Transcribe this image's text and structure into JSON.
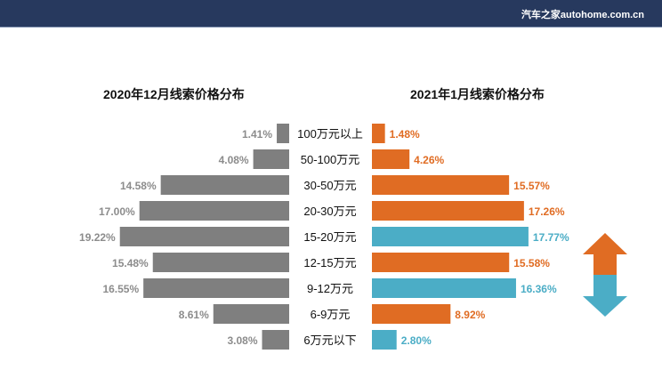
{
  "header": {
    "brand": "汽车之家autohome.com.cn"
  },
  "chart_data": {
    "type": "bar",
    "categories": [
      "100万元以上",
      "50-100万元",
      "30-50万元",
      "20-30万元",
      "15-20万元",
      "12-15万元",
      "9-12万元",
      "6-9万元",
      "6万元以下"
    ],
    "series": [
      {
        "name": "2020年12月线索价格分布",
        "values": [
          1.41,
          4.08,
          14.58,
          17.0,
          19.22,
          15.48,
          16.55,
          8.61,
          3.08
        ],
        "labels": [
          "1.41%",
          "4.08%",
          "14.58%",
          "17.00%",
          "19.22%",
          "15.48%",
          "16.55%",
          "8.61%",
          "3.08%"
        ],
        "color": "#7f7f7f"
      },
      {
        "name": "2021年1月线索价格分布",
        "values": [
          1.48,
          4.26,
          15.57,
          17.26,
          17.77,
          15.58,
          16.36,
          8.92,
          2.8
        ],
        "labels": [
          "1.48%",
          "4.26%",
          "15.57%",
          "17.26%",
          "17.77%",
          "15.58%",
          "16.36%",
          "8.92%",
          "2.80%"
        ],
        "trend": [
          "up",
          "up",
          "up",
          "up",
          "down",
          "up",
          "down",
          "up",
          "down"
        ]
      }
    ],
    "colors": {
      "up": "#e06c23",
      "down": "#4badc6",
      "left": "#7f7f7f",
      "left_label": "#8c8c8c"
    }
  }
}
